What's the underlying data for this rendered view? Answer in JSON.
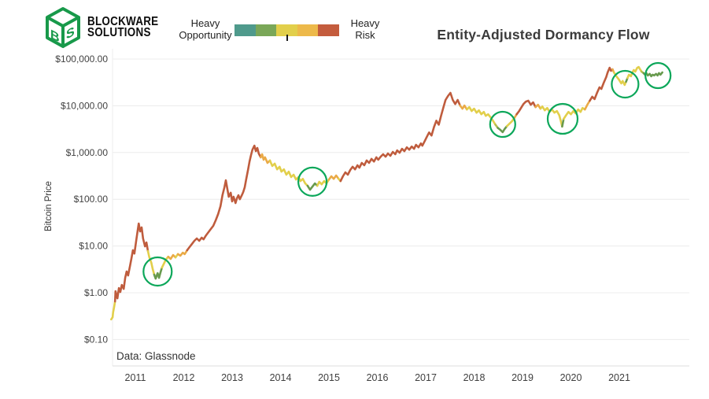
{
  "logo": {
    "line1": "BLOCKWARE",
    "line2": "SOLUTIONS",
    "color": "#18994a"
  },
  "legend": {
    "left_label_line1": "Heavy",
    "left_label_line2": "Opportunity",
    "right_label_line1": "Heavy",
    "right_label_line2": "Risk",
    "gradient_colors": [
      "#4f9a8c",
      "#7aa758",
      "#e2cf4b",
      "#edb94a",
      "#c45c3d"
    ],
    "tick_position_fraction": 0.5
  },
  "title": "Entity-Adjusted Dormancy Flow",
  "footnote": "Data: Glassnode",
  "chart_data": {
    "type": "line",
    "title": "Entity-Adjusted Dormancy Flow",
    "xlabel": "",
    "ylabel": "Bitcoin Price",
    "y_scale": "log",
    "grid": "horizontal",
    "x_range": [
      2010.45,
      2022.05
    ],
    "y_range": [
      0.07,
      200000
    ],
    "x_ticks": [
      2011,
      2012,
      2013,
      2014,
      2015,
      2016,
      2017,
      2018,
      2019,
      2020,
      2021
    ],
    "y_ticks": [
      {
        "value": 100000,
        "label": "$100,000.00"
      },
      {
        "value": 10000,
        "label": "$10,000.00"
      },
      {
        "value": 1000,
        "label": "$1,000.00"
      },
      {
        "value": 100,
        "label": "$100.00"
      },
      {
        "value": 10,
        "label": "$10.00"
      },
      {
        "value": 1,
        "label": "$1.00"
      },
      {
        "value": 0.1,
        "label": "$0.10"
      }
    ],
    "series_name": "Bitcoin price colored by Entity-Adjusted Dormancy Flow (green = heavy opportunity, red = heavy risk)",
    "zone_colors": {
      "r": "#bf5c3d",
      "o": "#eaaa47",
      "y": "#e2cf4b",
      "yg": "#b5bd4e",
      "g": "#689a4e"
    },
    "circle_color": "#0ca75a",
    "points": [
      [
        2010.5,
        0.27,
        "y"
      ],
      [
        2010.53,
        0.3,
        "y"
      ],
      [
        2010.54,
        0.38,
        "y"
      ],
      [
        2010.56,
        0.48,
        "y"
      ],
      [
        2010.58,
        0.65,
        "r"
      ],
      [
        2010.59,
        1.08,
        "r"
      ],
      [
        2010.63,
        0.76,
        "r"
      ],
      [
        2010.66,
        1.26,
        "r"
      ],
      [
        2010.69,
        1.04,
        "r"
      ],
      [
        2010.72,
        1.47,
        "r"
      ],
      [
        2010.76,
        1.21,
        "r"
      ],
      [
        2010.79,
        2.09,
        "r"
      ],
      [
        2010.82,
        2.85,
        "r"
      ],
      [
        2010.85,
        2.35,
        "r"
      ],
      [
        2010.89,
        3.74,
        "r"
      ],
      [
        2010.92,
        5.5,
        "r"
      ],
      [
        2010.95,
        8.1,
        "r"
      ],
      [
        2010.98,
        6.9,
        "r"
      ],
      [
        2011.02,
        13.4,
        "r"
      ],
      [
        2011.05,
        22.2,
        "r"
      ],
      [
        2011.07,
        30.3,
        "r"
      ],
      [
        2011.1,
        20.5,
        "r"
      ],
      [
        2011.13,
        25.0,
        "r"
      ],
      [
        2011.16,
        14.5,
        "r"
      ],
      [
        2011.2,
        9.8,
        "r"
      ],
      [
        2011.23,
        11.9,
        "r"
      ],
      [
        2011.26,
        7.8,
        "y"
      ],
      [
        2011.29,
        5.7,
        "y"
      ],
      [
        2011.33,
        4.4,
        "y"
      ],
      [
        2011.36,
        3.2,
        "y"
      ],
      [
        2011.39,
        2.44,
        "g"
      ],
      [
        2011.42,
        2.01,
        "g"
      ],
      [
        2011.46,
        2.63,
        "g"
      ],
      [
        2011.49,
        2.09,
        "g"
      ],
      [
        2011.52,
        2.74,
        "g"
      ],
      [
        2011.55,
        3.45,
        "y"
      ],
      [
        2011.59,
        4.2,
        "y"
      ],
      [
        2011.63,
        5.1,
        "y"
      ],
      [
        2011.68,
        5.9,
        "o"
      ],
      [
        2011.73,
        5.3,
        "o"
      ],
      [
        2011.78,
        6.4,
        "o"
      ],
      [
        2011.83,
        5.7,
        "y"
      ],
      [
        2011.88,
        6.7,
        "o"
      ],
      [
        2011.93,
        6.2,
        "o"
      ],
      [
        2011.98,
        7.2,
        "o"
      ],
      [
        2012.02,
        6.7,
        "o"
      ],
      [
        2012.07,
        8.1,
        "r"
      ],
      [
        2012.12,
        9.5,
        "r"
      ],
      [
        2012.17,
        11.1,
        "r"
      ],
      [
        2012.22,
        12.9,
        "r"
      ],
      [
        2012.27,
        14.5,
        "r"
      ],
      [
        2012.32,
        12.9,
        "r"
      ],
      [
        2012.37,
        15.1,
        "r"
      ],
      [
        2012.41,
        13.9,
        "r"
      ],
      [
        2012.46,
        16.9,
        "r"
      ],
      [
        2012.51,
        19.8,
        "r"
      ],
      [
        2012.56,
        23.1,
        "r"
      ],
      [
        2012.61,
        27.0,
        "r"
      ],
      [
        2012.66,
        35.4,
        "r"
      ],
      [
        2012.71,
        48.3,
        "r"
      ],
      [
        2012.76,
        71.1,
        "r"
      ],
      [
        2012.8,
        122,
        "r"
      ],
      [
        2012.84,
        180,
        "r"
      ],
      [
        2012.87,
        255,
        "r"
      ],
      [
        2012.9,
        167,
        "r"
      ],
      [
        2012.93,
        113,
        "r"
      ],
      [
        2012.97,
        138,
        "r"
      ],
      [
        2013.0,
        90,
        "r"
      ],
      [
        2013.03,
        113,
        "r"
      ],
      [
        2013.07,
        83,
        "r"
      ],
      [
        2013.1,
        105,
        "r"
      ],
      [
        2013.13,
        122,
        "r"
      ],
      [
        2013.16,
        100,
        "r"
      ],
      [
        2013.2,
        122,
        "r"
      ],
      [
        2013.23,
        143,
        "r"
      ],
      [
        2013.26,
        180,
        "r"
      ],
      [
        2013.29,
        265,
        "r"
      ],
      [
        2013.33,
        437,
        "r"
      ],
      [
        2013.36,
        641,
        "r"
      ],
      [
        2013.39,
        880,
        "r"
      ],
      [
        2013.42,
        1150,
        "r"
      ],
      [
        2013.46,
        1400,
        "r"
      ],
      [
        2013.49,
        1070,
        "r"
      ],
      [
        2013.52,
        1250,
        "r"
      ],
      [
        2013.55,
        955,
        "r"
      ],
      [
        2013.59,
        790,
        "o"
      ],
      [
        2013.62,
        920,
        "o"
      ],
      [
        2013.65,
        700,
        "o"
      ],
      [
        2013.68,
        790,
        "o"
      ],
      [
        2013.73,
        600,
        "o"
      ],
      [
        2013.78,
        675,
        "y"
      ],
      [
        2013.83,
        515,
        "y"
      ],
      [
        2013.88,
        580,
        "y"
      ],
      [
        2013.93,
        437,
        "y"
      ],
      [
        2013.98,
        495,
        "y"
      ],
      [
        2014.02,
        390,
        "y"
      ],
      [
        2014.07,
        437,
        "y"
      ],
      [
        2014.12,
        335,
        "y"
      ],
      [
        2014.17,
        390,
        "y"
      ],
      [
        2014.22,
        298,
        "y"
      ],
      [
        2014.27,
        335,
        "y"
      ],
      [
        2014.32,
        265,
        "y"
      ],
      [
        2014.37,
        298,
        "y"
      ],
      [
        2014.41,
        245,
        "y"
      ],
      [
        2014.46,
        273,
        "y"
      ],
      [
        2014.51,
        218,
        "y"
      ],
      [
        2014.56,
        194,
        "g"
      ],
      [
        2014.61,
        160,
        "g"
      ],
      [
        2014.66,
        187,
        "g"
      ],
      [
        2014.71,
        218,
        "g"
      ],
      [
        2014.76,
        194,
        "y"
      ],
      [
        2014.8,
        236,
        "y"
      ],
      [
        2014.85,
        209,
        "y"
      ],
      [
        2014.9,
        245,
        "y"
      ],
      [
        2014.95,
        218,
        "y"
      ],
      [
        2015.0,
        265,
        "o"
      ],
      [
        2015.05,
        310,
        "o"
      ],
      [
        2015.1,
        273,
        "o"
      ],
      [
        2015.15,
        323,
        "o"
      ],
      [
        2015.2,
        273,
        "y"
      ],
      [
        2015.24,
        245,
        "r"
      ],
      [
        2015.29,
        310,
        "r"
      ],
      [
        2015.34,
        377,
        "r"
      ],
      [
        2015.39,
        335,
        "r"
      ],
      [
        2015.44,
        423,
        "r"
      ],
      [
        2015.49,
        495,
        "r"
      ],
      [
        2015.54,
        437,
        "r"
      ],
      [
        2015.59,
        533,
        "r"
      ],
      [
        2015.63,
        473,
        "r"
      ],
      [
        2015.68,
        600,
        "r"
      ],
      [
        2015.73,
        533,
        "r"
      ],
      [
        2015.78,
        675,
        "r"
      ],
      [
        2015.83,
        600,
        "r"
      ],
      [
        2015.88,
        730,
        "r"
      ],
      [
        2015.93,
        641,
        "r"
      ],
      [
        2015.98,
        790,
        "r"
      ],
      [
        2016.02,
        700,
        "r"
      ],
      [
        2016.07,
        815,
        "r"
      ],
      [
        2016.12,
        920,
        "r"
      ],
      [
        2016.17,
        815,
        "r"
      ],
      [
        2016.22,
        955,
        "r"
      ],
      [
        2016.27,
        850,
        "r"
      ],
      [
        2016.32,
        1030,
        "r"
      ],
      [
        2016.37,
        920,
        "r"
      ],
      [
        2016.41,
        1110,
        "r"
      ],
      [
        2016.46,
        990,
        "r"
      ],
      [
        2016.51,
        1200,
        "r"
      ],
      [
        2016.56,
        1070,
        "r"
      ],
      [
        2016.61,
        1290,
        "r"
      ],
      [
        2016.66,
        1150,
        "r"
      ],
      [
        2016.71,
        1340,
        "r"
      ],
      [
        2016.76,
        1200,
        "r"
      ],
      [
        2016.8,
        1460,
        "r"
      ],
      [
        2016.85,
        1290,
        "r"
      ],
      [
        2016.9,
        1570,
        "r"
      ],
      [
        2016.93,
        1400,
        "r"
      ],
      [
        2016.98,
        1760,
        "r"
      ],
      [
        2017.02,
        2130,
        "r"
      ],
      [
        2017.07,
        2690,
        "r"
      ],
      [
        2017.12,
        2310,
        "r"
      ],
      [
        2017.17,
        3500,
        "r"
      ],
      [
        2017.22,
        4790,
        "r"
      ],
      [
        2017.27,
        3940,
        "r"
      ],
      [
        2017.32,
        6280,
        "r"
      ],
      [
        2017.37,
        9640,
        "r"
      ],
      [
        2017.41,
        13300,
        "r"
      ],
      [
        2017.46,
        16200,
        "r"
      ],
      [
        2017.51,
        18900,
        "r"
      ],
      [
        2017.56,
        13300,
        "r"
      ],
      [
        2017.61,
        10900,
        "r"
      ],
      [
        2017.66,
        13300,
        "r"
      ],
      [
        2017.71,
        10100,
        "o"
      ],
      [
        2017.76,
        8650,
        "o"
      ],
      [
        2017.8,
        10100,
        "o"
      ],
      [
        2017.85,
        8320,
        "y"
      ],
      [
        2017.9,
        9360,
        "y"
      ],
      [
        2017.95,
        7700,
        "y"
      ],
      [
        2018.0,
        8650,
        "y"
      ],
      [
        2018.05,
        7120,
        "y"
      ],
      [
        2018.1,
        8000,
        "y"
      ],
      [
        2018.15,
        6590,
        "y"
      ],
      [
        2018.2,
        7400,
        "y"
      ],
      [
        2018.24,
        6100,
        "y"
      ],
      [
        2018.29,
        6590,
        "y"
      ],
      [
        2018.34,
        5650,
        "y"
      ],
      [
        2018.39,
        4790,
        "y"
      ],
      [
        2018.44,
        3940,
        "yg"
      ],
      [
        2018.49,
        3370,
        "g"
      ],
      [
        2018.54,
        3060,
        "g"
      ],
      [
        2018.59,
        2730,
        "g"
      ],
      [
        2018.63,
        3180,
        "g"
      ],
      [
        2018.68,
        3680,
        "y"
      ],
      [
        2018.73,
        4140,
        "y"
      ],
      [
        2018.78,
        4640,
        "y"
      ],
      [
        2018.83,
        5430,
        "o"
      ],
      [
        2018.88,
        6590,
        "r"
      ],
      [
        2018.93,
        7700,
        "r"
      ],
      [
        2018.98,
        9360,
        "r"
      ],
      [
        2019.02,
        10900,
        "r"
      ],
      [
        2019.07,
        12300,
        "r"
      ],
      [
        2019.12,
        12800,
        "r"
      ],
      [
        2019.17,
        10500,
        "r"
      ],
      [
        2019.22,
        11800,
        "r"
      ],
      [
        2019.27,
        9360,
        "o"
      ],
      [
        2019.32,
        10500,
        "o"
      ],
      [
        2019.37,
        8650,
        "y"
      ],
      [
        2019.41,
        9640,
        "y"
      ],
      [
        2019.46,
        8000,
        "y"
      ],
      [
        2019.51,
        8960,
        "y"
      ],
      [
        2019.56,
        7400,
        "y"
      ],
      [
        2019.61,
        8320,
        "y"
      ],
      [
        2019.66,
        7120,
        "y"
      ],
      [
        2019.71,
        7700,
        "y"
      ],
      [
        2019.76,
        6280,
        "y"
      ],
      [
        2019.79,
        4790,
        "y"
      ],
      [
        2019.82,
        3600,
        "g"
      ],
      [
        2019.85,
        5230,
        "y"
      ],
      [
        2019.9,
        6280,
        "y"
      ],
      [
        2019.95,
        7400,
        "y"
      ],
      [
        2020.0,
        6590,
        "y"
      ],
      [
        2020.05,
        7700,
        "y"
      ],
      [
        2020.1,
        6860,
        "y"
      ],
      [
        2020.15,
        8320,
        "y"
      ],
      [
        2020.2,
        7400,
        "y"
      ],
      [
        2020.24,
        8960,
        "y"
      ],
      [
        2020.29,
        8320,
        "o"
      ],
      [
        2020.34,
        10500,
        "o"
      ],
      [
        2020.39,
        12800,
        "r"
      ],
      [
        2020.44,
        15600,
        "r"
      ],
      [
        2020.49,
        13900,
        "r"
      ],
      [
        2020.54,
        18900,
        "r"
      ],
      [
        2020.59,
        24800,
        "r"
      ],
      [
        2020.63,
        22900,
        "r"
      ],
      [
        2020.68,
        31300,
        "r"
      ],
      [
        2020.73,
        41100,
        "r"
      ],
      [
        2020.76,
        51700,
        "r"
      ],
      [
        2020.8,
        65100,
        "r"
      ],
      [
        2020.83,
        55800,
        "r"
      ],
      [
        2020.86,
        60200,
        "o"
      ],
      [
        2020.89,
        51700,
        "y"
      ],
      [
        2020.94,
        42800,
        "y"
      ],
      [
        2020.99,
        36600,
        "y"
      ],
      [
        2021.04,
        30100,
        "y"
      ],
      [
        2021.07,
        33900,
        "y"
      ],
      [
        2021.11,
        27900,
        "y"
      ],
      [
        2021.14,
        32700,
        "g"
      ],
      [
        2021.17,
        39500,
        "y"
      ],
      [
        2021.2,
        46200,
        "y"
      ],
      [
        2021.24,
        42800,
        "y"
      ],
      [
        2021.27,
        51700,
        "y"
      ],
      [
        2021.3,
        58100,
        "y"
      ],
      [
        2021.33,
        53700,
        "y"
      ],
      [
        2021.37,
        65100,
        "y"
      ],
      [
        2021.4,
        67700,
        "y"
      ],
      [
        2021.43,
        60200,
        "y"
      ],
      [
        2021.46,
        53700,
        "yg"
      ],
      [
        2021.5,
        49900,
        "g"
      ],
      [
        2021.53,
        46200,
        "g"
      ],
      [
        2021.56,
        49900,
        "g"
      ],
      [
        2021.59,
        44500,
        "g"
      ],
      [
        2021.63,
        48100,
        "g"
      ],
      [
        2021.66,
        42800,
        "g"
      ],
      [
        2021.69,
        46200,
        "g"
      ],
      [
        2021.72,
        44500,
        "g"
      ],
      [
        2021.76,
        48100,
        "g"
      ],
      [
        2021.79,
        44500,
        "g"
      ],
      [
        2021.82,
        49900,
        "g"
      ],
      [
        2021.85,
        46200,
        "g"
      ],
      [
        2021.89,
        51700,
        "y"
      ]
    ],
    "opportunity_circles": [
      {
        "year": 2011.46,
        "price": 2.85,
        "r": 18
      },
      {
        "year": 2014.66,
        "price": 237,
        "r": 18
      },
      {
        "year": 2018.59,
        "price": 4000,
        "r": 16
      },
      {
        "year": 2019.83,
        "price": 5250,
        "r": 19
      },
      {
        "year": 2021.12,
        "price": 28900,
        "r": 17
      },
      {
        "year": 2021.8,
        "price": 44300,
        "r": 16
      }
    ]
  }
}
